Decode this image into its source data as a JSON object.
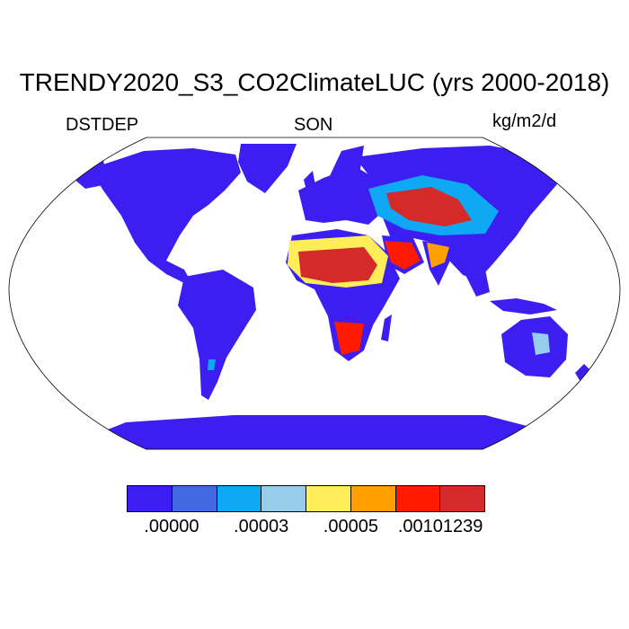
{
  "map": {
    "title": "TRENDY2020_S3_CO2ClimateLUC (yrs 2000-2018)",
    "variable": "DSTDEP",
    "season": "SON",
    "units": "kg/m2/d",
    "projection": "Robinson",
    "background_color": "#ffffff",
    "coastline_color": "#000000"
  },
  "colorbar": {
    "colors": [
      "#3d1ef0",
      "#4169e1",
      "#0fa8f5",
      "#96cdec",
      "#ffee5a",
      "#ff9f00",
      "#ff1a00",
      "#d42a2a"
    ],
    "labels": [
      {
        "text": ".00000",
        "boundary": 1
      },
      {
        "text": ".00003",
        "boundary": 3
      },
      {
        "text": ".00005",
        "boundary": 5
      },
      {
        "text": ".00101239",
        "boundary": 7
      }
    ]
  }
}
